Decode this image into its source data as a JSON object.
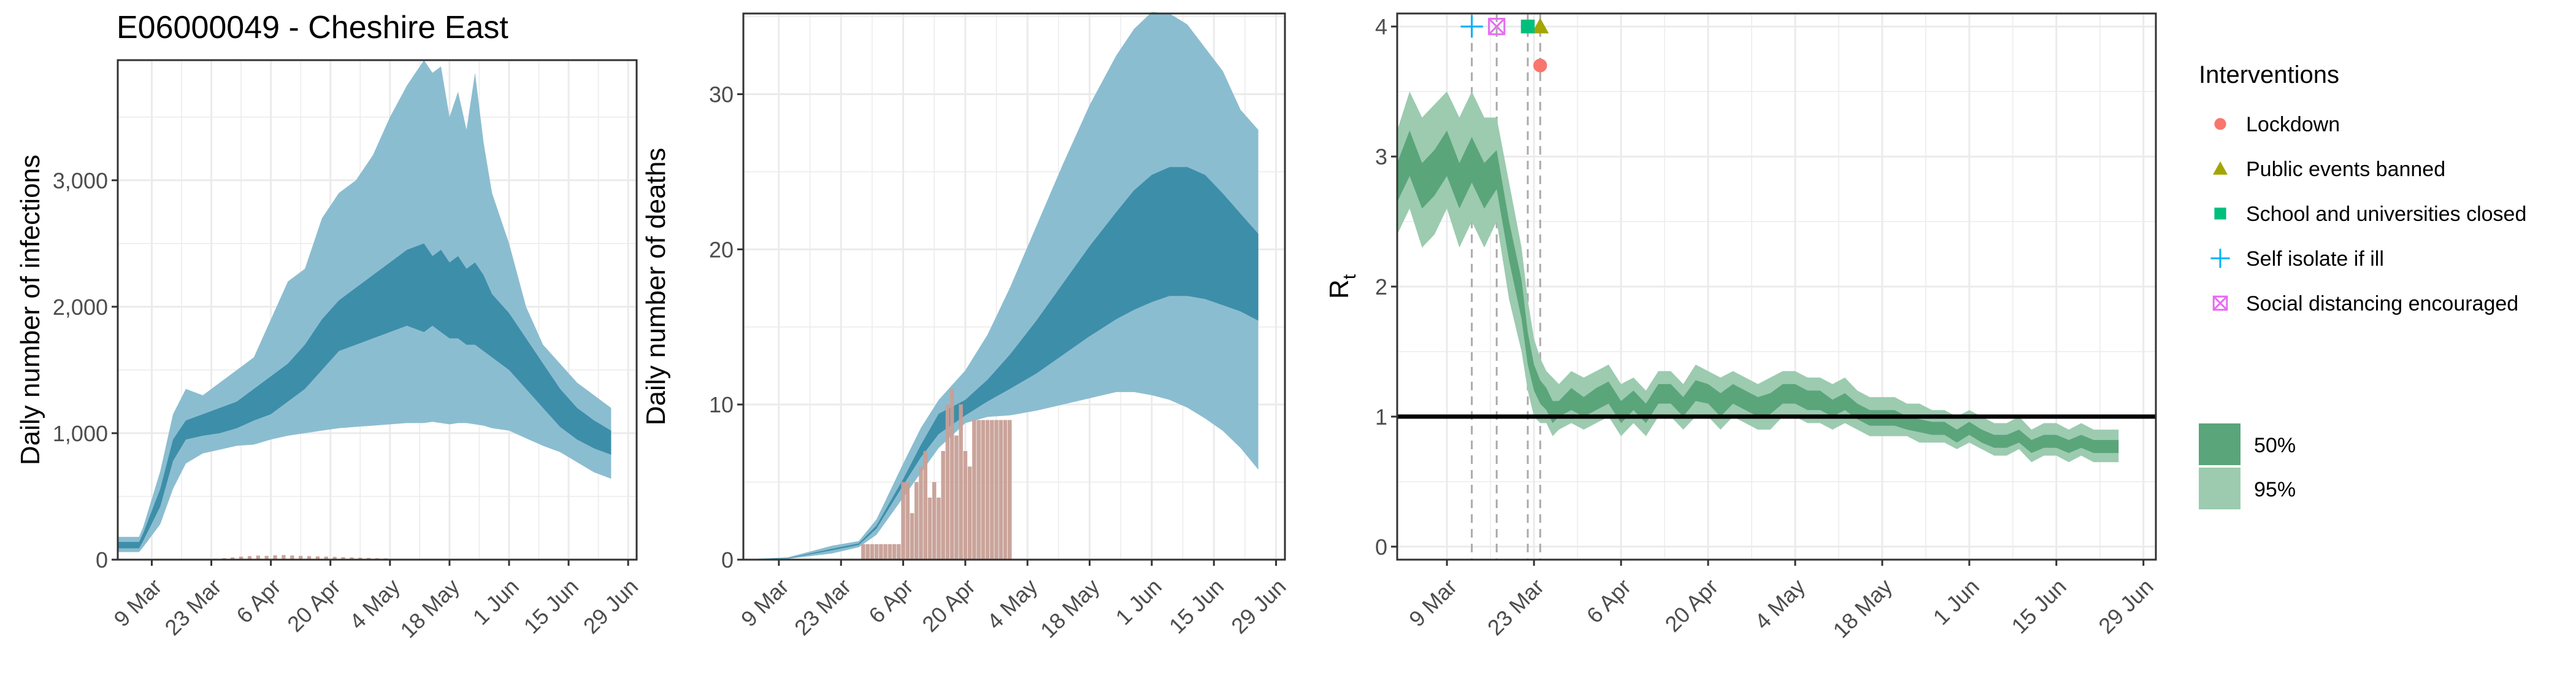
{
  "figure_title": "E06000049 - Cheshire East",
  "colors": {
    "infections_95": "#8bbdd0",
    "infections_50": "#3d8ea9",
    "deaths_bar": "#c79f96",
    "rt_95": "#9ccbb0",
    "rt_50": "#5ba57a",
    "grid": "#ebebeb",
    "lockdown": "#f8766d",
    "public_events": "#a3a500",
    "school": "#00bf7d",
    "self_isolate": "#00b0f6",
    "social_distancing": "#e76bf3"
  },
  "chart_data": [
    {
      "type": "area",
      "id": "infections",
      "title": "",
      "xlabel": "",
      "ylabel": "Daily number of infections",
      "x_tick_labels": [
        "9 Mar",
        "23 Mar",
        "6 Apr",
        "20 Apr",
        "4 May",
        "18 May",
        "1 Jun",
        "15 Jun",
        "29 Jun"
      ],
      "x_tick_days": [
        8,
        22,
        36,
        50,
        64,
        78,
        92,
        106,
        120
      ],
      "xlim": [
        0,
        122
      ],
      "y_tick_labels": [
        "0",
        "1,000",
        "2,000",
        "3,000"
      ],
      "y_tick_values": [
        0,
        1000,
        2000,
        3000
      ],
      "ylim": [
        0,
        3950
      ],
      "grid": true,
      "x_start_date": "2020-03-01",
      "bands": [
        {
          "name": "95%",
          "x": [
            0,
            5,
            6,
            10,
            13,
            16,
            20,
            24,
            28,
            32,
            36,
            40,
            44,
            48,
            52,
            56,
            60,
            64,
            68,
            72,
            74,
            76,
            78,
            80,
            82,
            84,
            86,
            88,
            92,
            96,
            100,
            104,
            108,
            112,
            116
          ],
          "lower": [
            60,
            60,
            100,
            280,
            560,
            760,
            840,
            870,
            900,
            910,
            950,
            980,
            1000,
            1020,
            1040,
            1050,
            1060,
            1070,
            1080,
            1080,
            1090,
            1080,
            1070,
            1080,
            1080,
            1070,
            1060,
            1040,
            1020,
            960,
            900,
            850,
            770,
            690,
            640
          ],
          "upper": [
            180,
            180,
            260,
            700,
            1150,
            1350,
            1300,
            1400,
            1500,
            1600,
            1900,
            2200,
            2300,
            2700,
            2900,
            3000,
            3200,
            3500,
            3750,
            3950,
            3850,
            3900,
            3500,
            3700,
            3400,
            3850,
            3300,
            2900,
            2500,
            2000,
            1700,
            1550,
            1400,
            1300,
            1200
          ]
        },
        {
          "name": "50%",
          "x": [
            0,
            5,
            6,
            10,
            13,
            16,
            20,
            24,
            28,
            32,
            36,
            40,
            44,
            48,
            52,
            56,
            60,
            64,
            68,
            72,
            74,
            76,
            78,
            80,
            82,
            84,
            86,
            88,
            92,
            96,
            100,
            104,
            108,
            112,
            116
          ],
          "lower": [
            90,
            90,
            150,
            420,
            780,
            950,
            980,
            1000,
            1040,
            1100,
            1150,
            1250,
            1350,
            1500,
            1650,
            1700,
            1750,
            1800,
            1850,
            1800,
            1850,
            1800,
            1750,
            1750,
            1700,
            1700,
            1650,
            1600,
            1500,
            1350,
            1200,
            1050,
            950,
            880,
            830
          ],
          "upper": [
            140,
            140,
            210,
            560,
            950,
            1100,
            1150,
            1200,
            1250,
            1350,
            1450,
            1550,
            1700,
            1900,
            2050,
            2150,
            2250,
            2350,
            2450,
            2500,
            2400,
            2450,
            2350,
            2400,
            2300,
            2350,
            2250,
            2100,
            1950,
            1750,
            1550,
            1350,
            1200,
            1100,
            1020
          ]
        }
      ],
      "observed": {
        "name": "reported cases",
        "x": [
          23,
          25,
          27,
          29,
          31,
          33,
          35,
          37,
          39,
          41,
          43,
          45,
          47,
          49,
          51,
          53,
          55,
          57,
          59,
          61,
          63
        ],
        "values": [
          8,
          12,
          18,
          24,
          28,
          32,
          30,
          34,
          36,
          33,
          30,
          28,
          26,
          24,
          22,
          20,
          18,
          16,
          14,
          12,
          10
        ]
      }
    },
    {
      "type": "area",
      "id": "deaths",
      "title": "",
      "xlabel": "",
      "ylabel": "Daily number of deaths",
      "x_tick_labels": [
        "9 Mar",
        "23 Mar",
        "6 Apr",
        "20 Apr",
        "4 May",
        "18 May",
        "1 Jun",
        "15 Jun",
        "29 Jun"
      ],
      "x_tick_days": [
        8,
        22,
        36,
        50,
        64,
        78,
        92,
        106,
        120
      ],
      "xlim": [
        0,
        122
      ],
      "y_tick_labels": [
        "0",
        "10",
        "20",
        "30"
      ],
      "y_tick_values": [
        0,
        10,
        20,
        30
      ],
      "ylim": [
        0,
        35.2
      ],
      "grid": true,
      "bands": [
        {
          "name": "95%",
          "x": [
            0,
            10,
            20,
            26,
            30,
            36,
            40,
            44,
            50,
            55,
            60,
            66,
            72,
            78,
            84,
            88,
            92,
            96,
            100,
            104,
            108,
            112,
            116
          ],
          "lower": [
            0,
            0.05,
            0.4,
            0.8,
            1.6,
            4.0,
            5.6,
            7.2,
            8.8,
            9.2,
            9.3,
            9.6,
            10.0,
            10.4,
            10.8,
            10.8,
            10.6,
            10.3,
            9.8,
            9.1,
            8.3,
            7.2,
            5.8
          ],
          "upper": [
            0.02,
            0.15,
            0.9,
            1.2,
            2.6,
            6.2,
            8.5,
            10.3,
            12.2,
            14.5,
            17.5,
            21.5,
            25.5,
            29.3,
            32.5,
            34.2,
            35.3,
            35.2,
            34.5,
            33.0,
            31.5,
            29.0,
            27.7
          ]
        },
        {
          "name": "50%",
          "x": [
            0,
            10,
            20,
            26,
            30,
            36,
            40,
            44,
            50,
            55,
            60,
            66,
            72,
            78,
            84,
            88,
            92,
            96,
            100,
            104,
            108,
            112,
            116
          ],
          "lower": [
            0.01,
            0.08,
            0.6,
            0.95,
            2.0,
            4.8,
            6.6,
            8.1,
            9.3,
            10.2,
            11.0,
            12.0,
            13.2,
            14.4,
            15.5,
            16.1,
            16.6,
            17.0,
            17.0,
            16.8,
            16.4,
            16.0,
            15.4
          ],
          "upper": [
            0.01,
            0.1,
            0.7,
            1.05,
            2.2,
            5.2,
            7.4,
            9.4,
            10.3,
            11.6,
            13.2,
            15.4,
            17.8,
            20.2,
            22.4,
            23.8,
            24.8,
            25.3,
            25.3,
            24.8,
            23.6,
            22.3,
            21.0
          ]
        }
      ],
      "observed": {
        "name": "reported deaths",
        "x": [
          27,
          28,
          29,
          30,
          31,
          32,
          33,
          34,
          35,
          36,
          37,
          38,
          39,
          40,
          41,
          42,
          43,
          44,
          45,
          46,
          47,
          48,
          49,
          50,
          51,
          52,
          53,
          54,
          55,
          56,
          57,
          58,
          59,
          60
        ],
        "values": [
          1,
          1,
          1,
          1,
          1,
          1,
          1,
          1,
          1,
          5,
          5,
          3,
          5,
          6,
          7,
          4,
          5,
          4,
          7,
          10,
          11,
          8,
          10,
          7,
          6,
          9,
          9,
          9,
          9,
          9,
          9,
          9,
          9,
          9
        ]
      }
    },
    {
      "type": "area",
      "id": "rt",
      "title": "",
      "xlabel": "",
      "ylabel": "R",
      "ylabel_subscript": "t",
      "x_tick_labels": [
        "9 Mar",
        "23 Mar",
        "6 Apr",
        "20 Apr",
        "4 May",
        "18 May",
        "1 Jun",
        "15 Jun",
        "29 Jun"
      ],
      "x_tick_days": [
        8,
        22,
        36,
        50,
        64,
        78,
        92,
        106,
        120
      ],
      "xlim": [
        0,
        122
      ],
      "y_tick_labels": [
        "0",
        "1",
        "2",
        "3",
        "4"
      ],
      "y_tick_values": [
        0,
        1,
        2,
        3,
        4
      ],
      "ylim": [
        -0.1,
        4.1
      ],
      "grid": true,
      "reference_line": 1,
      "bands": [
        {
          "name": "95%",
          "x": [
            0,
            2,
            4,
            6,
            8,
            10,
            12,
            14,
            16,
            18,
            20,
            21,
            22,
            23,
            24,
            25,
            26,
            28,
            30,
            32,
            34,
            36,
            38,
            40,
            42,
            44,
            46,
            48,
            50,
            52,
            54,
            56,
            58,
            60,
            62,
            64,
            66,
            68,
            70,
            72,
            74,
            76,
            78,
            80,
            82,
            84,
            86,
            88,
            90,
            92,
            94,
            96,
            98,
            100,
            102,
            104,
            106,
            108,
            110,
            112,
            114,
            116
          ],
          "lower": [
            2.4,
            2.6,
            2.3,
            2.4,
            2.6,
            2.3,
            2.5,
            2.3,
            2.5,
            1.9,
            1.5,
            1.2,
            1.0,
            0.95,
            0.95,
            0.85,
            0.9,
            0.95,
            0.9,
            0.95,
            1.0,
            0.85,
            0.95,
            0.85,
            1.0,
            1.0,
            0.9,
            1.0,
            1.0,
            0.9,
            1.0,
            0.95,
            0.9,
            0.9,
            1.0,
            1.0,
            0.95,
            0.95,
            0.9,
            0.95,
            0.9,
            0.85,
            0.85,
            0.85,
            0.85,
            0.8,
            0.8,
            0.8,
            0.75,
            0.8,
            0.75,
            0.7,
            0.7,
            0.75,
            0.65,
            0.7,
            0.7,
            0.65,
            0.7,
            0.65,
            0.65,
            0.65
          ],
          "upper": [
            3.2,
            3.5,
            3.3,
            3.4,
            3.5,
            3.3,
            3.5,
            3.3,
            3.3,
            2.8,
            2.3,
            1.9,
            1.6,
            1.45,
            1.35,
            1.3,
            1.25,
            1.35,
            1.3,
            1.35,
            1.4,
            1.25,
            1.3,
            1.2,
            1.35,
            1.35,
            1.25,
            1.4,
            1.35,
            1.3,
            1.35,
            1.3,
            1.25,
            1.3,
            1.35,
            1.35,
            1.3,
            1.3,
            1.25,
            1.3,
            1.2,
            1.15,
            1.15,
            1.15,
            1.1,
            1.1,
            1.05,
            1.05,
            1.0,
            1.05,
            1.0,
            0.95,
            0.95,
            1.0,
            0.9,
            0.95,
            0.95,
            0.9,
            0.95,
            0.9,
            0.9,
            0.9
          ]
        },
        {
          "name": "50%",
          "x": [
            0,
            2,
            4,
            6,
            8,
            10,
            12,
            14,
            16,
            18,
            20,
            21,
            22,
            23,
            24,
            25,
            26,
            28,
            30,
            32,
            34,
            36,
            38,
            40,
            42,
            44,
            46,
            48,
            50,
            52,
            54,
            56,
            58,
            60,
            62,
            64,
            66,
            68,
            70,
            72,
            74,
            76,
            78,
            80,
            82,
            84,
            86,
            88,
            90,
            92,
            94,
            96,
            98,
            100,
            102,
            104,
            106,
            108,
            110,
            112,
            114,
            116
          ],
          "lower": [
            2.65,
            2.85,
            2.6,
            2.7,
            2.85,
            2.6,
            2.8,
            2.6,
            2.75,
            2.2,
            1.75,
            1.4,
            1.2,
            1.1,
            1.05,
            0.95,
            1.0,
            1.05,
            1.0,
            1.05,
            1.1,
            0.95,
            1.05,
            0.95,
            1.1,
            1.1,
            1.0,
            1.12,
            1.1,
            1.0,
            1.1,
            1.05,
            1.0,
            1.02,
            1.1,
            1.1,
            1.05,
            1.05,
            1.0,
            1.05,
            0.98,
            0.93,
            0.93,
            0.93,
            0.9,
            0.88,
            0.86,
            0.86,
            0.8,
            0.86,
            0.8,
            0.76,
            0.76,
            0.8,
            0.72,
            0.76,
            0.76,
            0.72,
            0.76,
            0.72,
            0.72,
            0.72
          ],
          "upper": [
            2.95,
            3.2,
            2.95,
            3.05,
            3.2,
            2.95,
            3.15,
            2.95,
            3.05,
            2.5,
            2.05,
            1.65,
            1.4,
            1.28,
            1.22,
            1.12,
            1.12,
            1.22,
            1.15,
            1.22,
            1.27,
            1.12,
            1.2,
            1.1,
            1.25,
            1.25,
            1.15,
            1.28,
            1.25,
            1.18,
            1.25,
            1.2,
            1.15,
            1.18,
            1.25,
            1.25,
            1.2,
            1.2,
            1.13,
            1.18,
            1.1,
            1.05,
            1.05,
            1.05,
            1.0,
            0.98,
            0.96,
            0.96,
            0.9,
            0.96,
            0.9,
            0.86,
            0.86,
            0.9,
            0.82,
            0.86,
            0.86,
            0.82,
            0.86,
            0.82,
            0.82,
            0.82
          ]
        }
      ],
      "interventions": [
        {
          "name": "Lockdown",
          "day": 23,
          "y": 3.7,
          "symbol": "circle",
          "color_key": "lockdown"
        },
        {
          "name": "Public events banned",
          "day": 23,
          "y": 4.0,
          "symbol": "triangle",
          "color_key": "public_events"
        },
        {
          "name": "School and universities closed",
          "day": 21,
          "y": 4.0,
          "symbol": "square",
          "color_key": "school"
        },
        {
          "name": "Self isolate if ill",
          "day": 12,
          "y": 4.0,
          "symbol": "plus",
          "color_key": "self_isolate"
        },
        {
          "name": "Social distancing encouraged",
          "day": 16,
          "y": 4.0,
          "symbol": "boxcross",
          "color_key": "social_distancing"
        }
      ],
      "vlines_days": [
        12,
        16,
        21,
        23
      ]
    }
  ],
  "legend": {
    "title": "Interventions",
    "band_labels": [
      "50%",
      "95%"
    ]
  }
}
